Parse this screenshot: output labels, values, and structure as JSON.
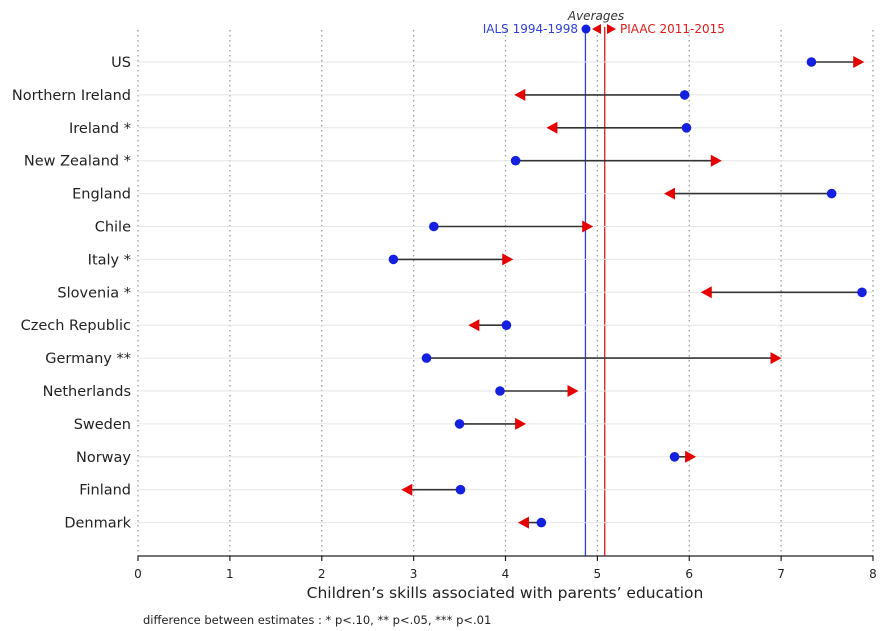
{
  "chart_data": {
    "type": "dumbbell",
    "xlabel": "Children’s skills associated with parents’ education",
    "xlim": [
      0,
      8
    ],
    "xticks": [
      "0",
      "1",
      "2",
      "3",
      "4",
      "5",
      "6",
      "7",
      "8"
    ],
    "note": "difference between estimates : * p<.10, ** p<.05, *** p<.01",
    "averages": {
      "title": "Averages",
      "ials": {
        "label": "IALS 1994-1998",
        "value": 4.87,
        "color": "#2f3fd8"
      },
      "piaac": {
        "label": "PIAAC 2011-2015",
        "value": 5.08,
        "color": "#e01a1a"
      }
    },
    "series": [
      {
        "name": "IALS 1994-1998",
        "marker": "circle",
        "color": "#1320e0"
      },
      {
        "name": "PIAAC 2011-2015",
        "marker": "triangle",
        "color": "#e60000"
      }
    ],
    "categories": [
      "US",
      "Northern Ireland",
      "Ireland *",
      "New Zealand *",
      "England",
      "Chile",
      "Italy *",
      "Slovenia *",
      "Czech Republic",
      "Germany **",
      "Netherlands",
      "Sweden",
      "Norway",
      "Finland",
      "Denmark"
    ],
    "ials": [
      7.33,
      5.95,
      5.97,
      4.11,
      7.55,
      3.22,
      2.78,
      7.88,
      4.01,
      3.14,
      3.94,
      3.5,
      5.84,
      3.51,
      4.39
    ],
    "piaac": [
      7.85,
      4.15,
      4.5,
      6.3,
      5.78,
      4.9,
      4.03,
      6.18,
      3.65,
      6.95,
      4.74,
      4.17,
      6.02,
      2.92,
      4.19
    ],
    "grid": "vertical-dotted"
  }
}
